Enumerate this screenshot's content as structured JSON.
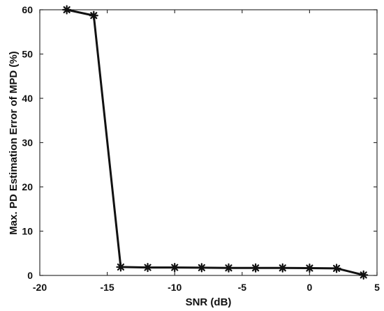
{
  "chart_data": {
    "type": "line",
    "title": "",
    "xlabel": "SNR (dB)",
    "ylabel": "Max. PD Estimation Error of MPD (%)",
    "xlim": [
      -20,
      5
    ],
    "ylim": [
      0,
      60
    ],
    "xticks": [
      -20,
      -15,
      -10,
      -5,
      0,
      5
    ],
    "yticks": [
      0,
      10,
      20,
      30,
      40,
      50,
      60
    ],
    "grid": false,
    "series": [
      {
        "color": "#111111",
        "marker": "asterisk",
        "points": [
          {
            "x": -18,
            "y": 60.0
          },
          {
            "x": -16,
            "y": 58.7
          },
          {
            "x": -14,
            "y": 1.9
          },
          {
            "x": -12,
            "y": 1.8
          },
          {
            "x": -10,
            "y": 1.8
          },
          {
            "x": -8,
            "y": 1.75
          },
          {
            "x": -6,
            "y": 1.7
          },
          {
            "x": -4,
            "y": 1.7
          },
          {
            "x": -2,
            "y": 1.7
          },
          {
            "x": 0,
            "y": 1.65
          },
          {
            "x": 2,
            "y": 1.6
          },
          {
            "x": 4,
            "y": 0.1
          }
        ]
      }
    ]
  }
}
